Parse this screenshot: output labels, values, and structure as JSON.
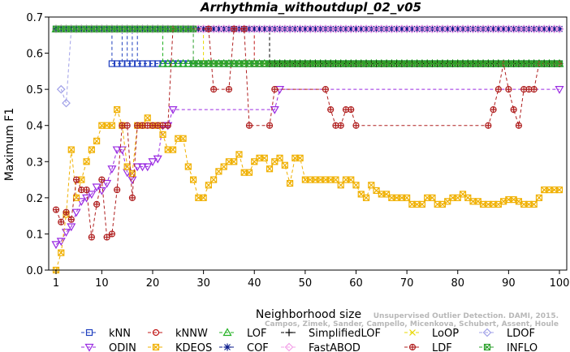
{
  "chart_data": {
    "type": "line",
    "title": "Arrhythmia_withoutdupl_02_v05",
    "xlabel": "Neighborhood size",
    "ylabel": "Maximum F1",
    "xlim": [
      1,
      100
    ],
    "ylim": [
      0,
      0.7
    ],
    "x_ticks": [
      1,
      10,
      20,
      30,
      40,
      50,
      60,
      70,
      80,
      90,
      100
    ],
    "y_ticks": [
      0.0,
      0.1,
      0.2,
      0.3,
      0.4,
      0.5,
      0.6,
      0.7
    ],
    "y_tick_labels": [
      "0.0",
      "0.1",
      "0.2",
      "0.3",
      "0.4",
      "0.5",
      "0.6",
      "0.7"
    ],
    "grid": false,
    "legend_position": "bottom",
    "watermark": [
      "Unsupervised Outlier Detection. DAMI, 2015.",
      "Campos, Zimek, Sander, Campello, Micenkova, Schubert, Assent, Houle"
    ],
    "series": [
      {
        "name": "kNN",
        "color": "#1f3fbf",
        "marker": "square",
        "dash": "4,3",
        "segments": [
          [
            1,
            0.667
          ],
          [
            12,
            0.667
          ],
          [
            12,
            0.571
          ],
          [
            14,
            0.571
          ],
          [
            14,
            0.667
          ],
          [
            15,
            0.667
          ],
          [
            15,
            0.571
          ],
          [
            16,
            0.571
          ],
          [
            16,
            0.667
          ],
          [
            17,
            0.667
          ],
          [
            17,
            0.571
          ],
          [
            100,
            0.571
          ]
        ]
      },
      {
        "name": "kNNW",
        "color": "#c01818",
        "marker": "circle",
        "dash": "4,3",
        "segments": [
          [
            1,
            0.667
          ],
          [
            40,
            0.667
          ],
          [
            40,
            0.571
          ],
          [
            100,
            0.571
          ]
        ]
      },
      {
        "name": "LOF",
        "color": "#20b020",
        "marker": "triangle-up",
        "dash": "4,3",
        "segments": [
          [
            1,
            0.667
          ],
          [
            22,
            0.667
          ],
          [
            22,
            0.571
          ],
          [
            100,
            0.571
          ]
        ]
      },
      {
        "name": "SimplifiedLOF",
        "color": "#000000",
        "marker": "plus",
        "dash": "4,3",
        "segments": [
          [
            1,
            0.667
          ],
          [
            43,
            0.667
          ],
          [
            43,
            0.571
          ],
          [
            100,
            0.571
          ]
        ]
      },
      {
        "name": "LoOP",
        "color": "#e8d800",
        "marker": "x",
        "dash": "4,3",
        "segments": [
          [
            1,
            0.667
          ],
          [
            30,
            0.667
          ],
          [
            30,
            0.571
          ],
          [
            100,
            0.571
          ]
        ]
      },
      {
        "name": "LDOF",
        "color": "#a0a0e8",
        "marker": "diamond",
        "dash": "4,3",
        "segments": [
          [
            2,
            0.5
          ],
          [
            3,
            0.462
          ],
          [
            4,
            0.667
          ],
          [
            100,
            0.667
          ]
        ]
      },
      {
        "name": "ODIN",
        "color": "#9a2be2",
        "marker": "triangle-down",
        "dash": "4,3",
        "values": [
          [
            1,
            0.071
          ],
          [
            2,
            0.08
          ],
          [
            3,
            0.105
          ],
          [
            4,
            0.12
          ],
          [
            5,
            0.16
          ],
          [
            6,
            0.19
          ],
          [
            7,
            0.2
          ],
          [
            8,
            0.21
          ],
          [
            9,
            0.23
          ],
          [
            10,
            0.22
          ],
          [
            11,
            0.24
          ],
          [
            12,
            0.28
          ],
          [
            13,
            0.333
          ],
          [
            14,
            0.333
          ],
          [
            15,
            0.27
          ],
          [
            16,
            0.25
          ],
          [
            17,
            0.286
          ],
          [
            18,
            0.286
          ],
          [
            19,
            0.286
          ],
          [
            20,
            0.3
          ],
          [
            21,
            0.308
          ],
          [
            22,
            0.4
          ],
          [
            23,
            0.4
          ],
          [
            24,
            0.444
          ],
          [
            44,
            0.444
          ],
          [
            45,
            0.5
          ],
          [
            100,
            0.5
          ]
        ]
      },
      {
        "name": "KDEOS",
        "color": "#f0b000",
        "marker": "square-x",
        "dash": "4,3",
        "values": [
          [
            1,
            0.0
          ],
          [
            2,
            0.048
          ],
          [
            3,
            0.154
          ],
          [
            4,
            0.333
          ],
          [
            5,
            0.2
          ],
          [
            6,
            0.25
          ],
          [
            7,
            0.3
          ],
          [
            8,
            0.333
          ],
          [
            9,
            0.357
          ],
          [
            10,
            0.4
          ],
          [
            11,
            0.4
          ],
          [
            12,
            0.4
          ],
          [
            13,
            0.444
          ],
          [
            14,
            0.4
          ],
          [
            15,
            0.286
          ],
          [
            16,
            0.267
          ],
          [
            17,
            0.4
          ],
          [
            18,
            0.4
          ],
          [
            19,
            0.421
          ],
          [
            20,
            0.4
          ],
          [
            21,
            0.4
          ],
          [
            22,
            0.375
          ],
          [
            23,
            0.333
          ],
          [
            24,
            0.333
          ],
          [
            25,
            0.364
          ],
          [
            26,
            0.364
          ],
          [
            27,
            0.286
          ],
          [
            28,
            0.25
          ],
          [
            29,
            0.2
          ],
          [
            30,
            0.2
          ],
          [
            31,
            0.235
          ],
          [
            32,
            0.25
          ],
          [
            33,
            0.273
          ],
          [
            34,
            0.286
          ],
          [
            35,
            0.3
          ],
          [
            36,
            0.3
          ],
          [
            37,
            0.32
          ],
          [
            38,
            0.27
          ],
          [
            39,
            0.27
          ],
          [
            40,
            0.3
          ],
          [
            41,
            0.31
          ],
          [
            42,
            0.31
          ],
          [
            43,
            0.28
          ],
          [
            44,
            0.3
          ],
          [
            45,
            0.31
          ],
          [
            46,
            0.29
          ],
          [
            47,
            0.24
          ],
          [
            48,
            0.31
          ],
          [
            49,
            0.31
          ],
          [
            50,
            0.25
          ],
          [
            51,
            0.25
          ],
          [
            52,
            0.25
          ],
          [
            53,
            0.25
          ],
          [
            54,
            0.25
          ],
          [
            55,
            0.25
          ],
          [
            56,
            0.25
          ],
          [
            57,
            0.235
          ],
          [
            58,
            0.25
          ],
          [
            59,
            0.25
          ],
          [
            60,
            0.235
          ],
          [
            61,
            0.21
          ],
          [
            62,
            0.2
          ],
          [
            63,
            0.235
          ],
          [
            64,
            0.22
          ],
          [
            65,
            0.21
          ],
          [
            66,
            0.21
          ],
          [
            67,
            0.2
          ],
          [
            68,
            0.2
          ],
          [
            69,
            0.2
          ],
          [
            70,
            0.2
          ],
          [
            71,
            0.182
          ],
          [
            72,
            0.182
          ],
          [
            73,
            0.182
          ],
          [
            74,
            0.2
          ],
          [
            75,
            0.2
          ],
          [
            76,
            0.182
          ],
          [
            77,
            0.182
          ],
          [
            78,
            0.19
          ],
          [
            79,
            0.2
          ],
          [
            80,
            0.2
          ],
          [
            81,
            0.21
          ],
          [
            82,
            0.2
          ],
          [
            83,
            0.19
          ],
          [
            84,
            0.19
          ],
          [
            85,
            0.182
          ],
          [
            86,
            0.182
          ],
          [
            87,
            0.182
          ],
          [
            88,
            0.182
          ],
          [
            89,
            0.19
          ],
          [
            90,
            0.195
          ],
          [
            91,
            0.195
          ],
          [
            92,
            0.19
          ],
          [
            93,
            0.182
          ],
          [
            94,
            0.182
          ],
          [
            95,
            0.182
          ],
          [
            96,
            0.2
          ],
          [
            97,
            0.222
          ],
          [
            98,
            0.222
          ],
          [
            99,
            0.222
          ],
          [
            100,
            0.222
          ]
        ]
      },
      {
        "name": "COF",
        "color": "#0b1c8c",
        "marker": "asterisk",
        "dash": "4,3",
        "segments": [
          [
            1,
            0.667
          ],
          [
            100,
            0.667
          ]
        ]
      },
      {
        "name": "FastABOD",
        "color": "#f3a0e8",
        "marker": "diamond",
        "dash": "4,3",
        "segments": [
          [
            1,
            0.667
          ],
          [
            100,
            0.667
          ]
        ]
      },
      {
        "name": "LDF",
        "color": "#b02020",
        "marker": "circle-plus",
        "dash": "4,3",
        "values": [
          [
            1,
            0.167
          ],
          [
            2,
            0.133
          ],
          [
            3,
            0.16
          ],
          [
            4,
            0.14
          ],
          [
            5,
            0.25
          ],
          [
            6,
            0.222
          ],
          [
            7,
            0.222
          ],
          [
            8,
            0.091
          ],
          [
            9,
            0.182
          ],
          [
            10,
            0.25
          ],
          [
            11,
            0.091
          ],
          [
            12,
            0.1
          ],
          [
            13,
            0.222
          ],
          [
            14,
            0.4
          ],
          [
            15,
            0.4
          ],
          [
            16,
            0.2
          ],
          [
            17,
            0.4
          ],
          [
            18,
            0.4
          ],
          [
            19,
            0.4
          ],
          [
            20,
            0.4
          ],
          [
            21,
            0.4
          ],
          [
            22,
            0.4
          ],
          [
            23,
            0.4
          ],
          [
            24,
            0.667
          ],
          [
            31,
            0.667
          ],
          [
            32,
            0.5
          ],
          [
            35,
            0.5
          ],
          [
            36,
            0.667
          ],
          [
            38,
            0.667
          ],
          [
            39,
            0.4
          ],
          [
            43,
            0.4
          ],
          [
            44,
            0.5
          ],
          [
            54,
            0.5
          ],
          [
            55,
            0.444
          ],
          [
            56,
            0.4
          ],
          [
            57,
            0.4
          ],
          [
            58,
            0.444
          ],
          [
            59,
            0.444
          ],
          [
            60,
            0.4
          ],
          [
            86,
            0.4
          ],
          [
            87,
            0.444
          ],
          [
            88,
            0.5
          ],
          [
            89,
            0.571
          ],
          [
            90,
            0.5
          ],
          [
            91,
            0.444
          ],
          [
            92,
            0.4
          ],
          [
            93,
            0.5
          ],
          [
            94,
            0.5
          ],
          [
            95,
            0.5
          ],
          [
            96,
            0.571
          ],
          [
            100,
            0.571
          ]
        ]
      },
      {
        "name": "INFLO",
        "color": "#2ca02c",
        "marker": "square-x",
        "dash": "4,3",
        "segments": [
          [
            1,
            0.667
          ],
          [
            28,
            0.667
          ],
          [
            28,
            0.571
          ],
          [
            100,
            0.571
          ]
        ]
      }
    ],
    "legend_items": [
      {
        "name": "kNN",
        "color": "#1f3fbf",
        "marker": "square"
      },
      {
        "name": "kNNW",
        "color": "#c01818",
        "marker": "circle"
      },
      {
        "name": "LOF",
        "color": "#20b020",
        "marker": "triangle-up"
      },
      {
        "name": "SimplifiedLOF",
        "color": "#000000",
        "marker": "plus"
      },
      {
        "name": "LoOP",
        "color": "#e8d800",
        "marker": "x"
      },
      {
        "name": "LDOF",
        "color": "#a0a0e8",
        "marker": "diamond"
      },
      {
        "name": "ODIN",
        "color": "#9a2be2",
        "marker": "triangle-down"
      },
      {
        "name": "KDEOS",
        "color": "#f0b000",
        "marker": "square-x"
      },
      {
        "name": "COF",
        "color": "#0b1c8c",
        "marker": "asterisk"
      },
      {
        "name": "FastABOD",
        "color": "#f3a0e8",
        "marker": "diamond"
      },
      {
        "name": "LDF",
        "color": "#b02020",
        "marker": "circle-plus"
      },
      {
        "name": "INFLO",
        "color": "#2ca02c",
        "marker": "square-x"
      }
    ]
  }
}
